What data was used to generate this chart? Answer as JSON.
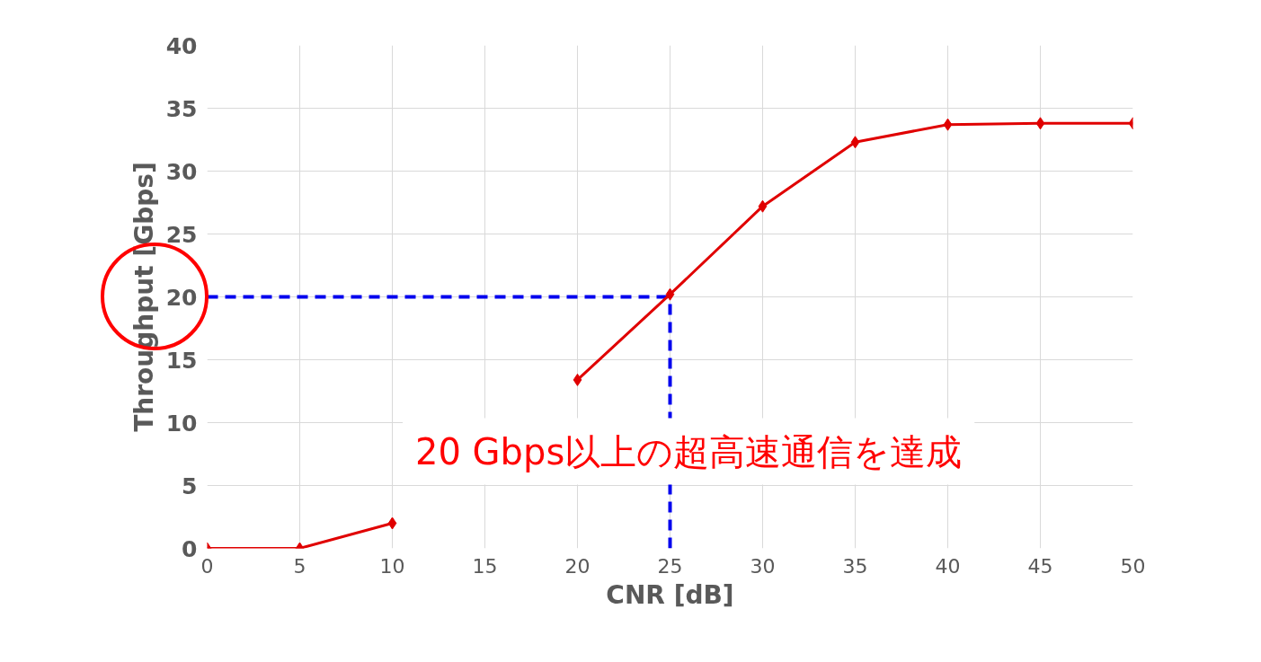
{
  "chart_data": {
    "type": "line",
    "xlabel": "CNR [dB]",
    "ylabel": "Throughput [Gbps]",
    "x": [
      0,
      5,
      10,
      15,
      20,
      25,
      30,
      35,
      40,
      45,
      50
    ],
    "series": [
      {
        "color": "#e00000",
        "values": [
          0,
          0,
          2.0,
          null,
          13.4,
          20.2,
          27.2,
          32.3,
          33.7,
          33.8,
          33.8
        ]
      }
    ],
    "xlim": [
      0,
      50
    ],
    "xticks": [
      0,
      5,
      10,
      15,
      20,
      25,
      30,
      35,
      40,
      45,
      50
    ],
    "ylim": [
      0,
      40
    ],
    "yticks": [
      0,
      5,
      10,
      15,
      20,
      25,
      30,
      35,
      40
    ],
    "grid": true,
    "marker": "diamond",
    "line_style": "solid",
    "ref_lines": [
      {
        "axis": "y",
        "value": 20,
        "color": "#0000ee",
        "line_style": "dashed"
      },
      {
        "axis": "x",
        "value": 25,
        "color": "#0000ee",
        "line_style": "dashed"
      }
    ],
    "annotations": [
      "20 Gbps以上の超高速通信を達成"
    ]
  }
}
